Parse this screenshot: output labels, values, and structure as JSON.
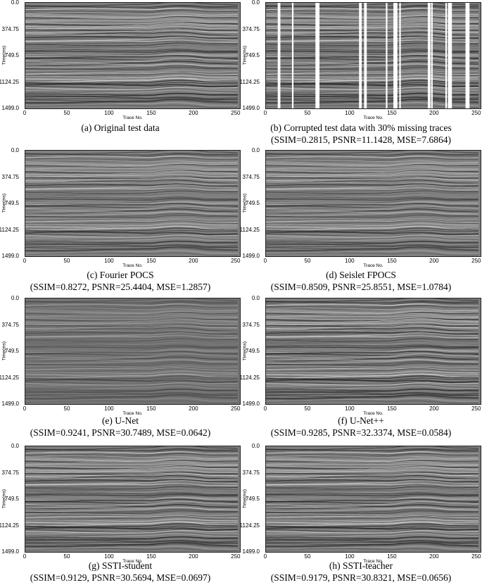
{
  "figure": {
    "y_axis_label": "Time(ms)",
    "x_axis_label": "Trace No.",
    "y_ticks": [
      "0.0",
      "374.75",
      "749.5",
      "1124.25",
      "1499.0"
    ],
    "x_ticks": [
      "0",
      "50",
      "100",
      "150",
      "200",
      "250"
    ],
    "panels": [
      {
        "id": "a",
        "caption_line1": "(a) Original test data",
        "caption_line2": ""
      },
      {
        "id": "b",
        "caption_line1": "(b) Corrupted test data with 30% missing traces",
        "caption_line2": "(SSIM=0.2815, PSNR=11.1428, MSE=7.6864)"
      },
      {
        "id": "c",
        "caption_line1": "(c) Fourier POCS",
        "caption_line2": "(SSIM=0.8272, PSNR=25.4404, MSE=1.2857)"
      },
      {
        "id": "d",
        "caption_line1": "(d) Seislet FPOCS",
        "caption_line2": "(SSIM=0.8509, PSNR=25.8551, MSE=1.0784)"
      },
      {
        "id": "e",
        "caption_line1": "(e) U-Net",
        "caption_line2": "(SSIM=0.9241, PSNR=30.7489, MSE=0.0642)"
      },
      {
        "id": "f",
        "caption_line1": "(f) U-Net++",
        "caption_line2": "(SSIM=0.9285, PSNR=32.3374, MSE=0.0584)"
      },
      {
        "id": "g",
        "caption_line1": "(g) SSTI-student",
        "caption_line2": "(SSIM=0.9129, PSNR=30.5694, MSE=0.0697)"
      },
      {
        "id": "h",
        "caption_line1": "(h) SSTI-teacher",
        "caption_line2": "(SSIM=0.9179, PSNR=30.8321, MSE=0.0656)"
      }
    ]
  }
}
